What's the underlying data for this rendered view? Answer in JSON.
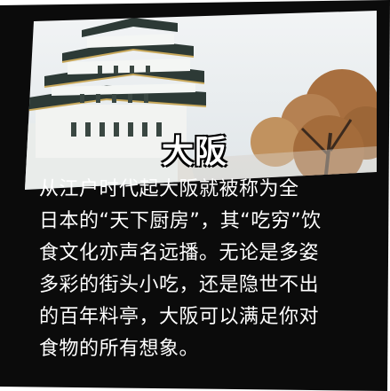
{
  "card": {
    "title": "大阪",
    "lines": [
      "从江户时代起大阪就被称为全",
      "日本的“天下厨房”，其“吃穷”饮",
      "食文化亦声名远播。无论是多姿",
      "多彩的街头小吃，还是隐世不出",
      "的百年料亭，大阪可以满足你对",
      "食物的所有想象。"
    ]
  },
  "colors": {
    "panel": "#0b0b0b",
    "text": "#ffffff",
    "sky": "#e7ecef",
    "castle_wall": "#f2f3f1",
    "castle_roof": "#2d3a36",
    "tree": "#b07a4a"
  },
  "icons": {
    "photo": "osaka-castle-photo"
  }
}
